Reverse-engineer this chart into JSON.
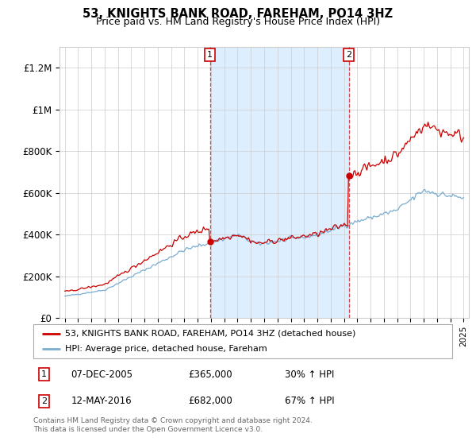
{
  "title": "53, KNIGHTS BANK ROAD, FAREHAM, PO14 3HZ",
  "subtitle": "Price paid vs. HM Land Registry's House Price Index (HPI)",
  "legend_line1": "53, KNIGHTS BANK ROAD, FAREHAM, PO14 3HZ (detached house)",
  "legend_line2": "HPI: Average price, detached house, Fareham",
  "footnote": "Contains HM Land Registry data © Crown copyright and database right 2024.\nThis data is licensed under the Open Government Licence v3.0.",
  "transaction1_date": "07-DEC-2005",
  "transaction1_price": 365000,
  "transaction1_hpi": "30% ↑ HPI",
  "transaction2_date": "12-MAY-2016",
  "transaction2_price": 682000,
  "transaction2_hpi": "67% ↑ HPI",
  "red_color": "#cc0000",
  "blue_color": "#7aadcf",
  "shaded_color": "#ddeeff",
  "background_color": "#ffffff",
  "ylim": [
    0,
    1300000
  ],
  "yticks": [
    0,
    200000,
    400000,
    600000,
    800000,
    1000000,
    1200000
  ],
  "ytick_labels": [
    "£0",
    "£200K",
    "£400K",
    "£600K",
    "£800K",
    "£1M",
    "£1.2M"
  ],
  "x_start_year": 1995,
  "x_end_year": 2025,
  "transaction1_x": 2005.92,
  "transaction2_x": 2016.36
}
